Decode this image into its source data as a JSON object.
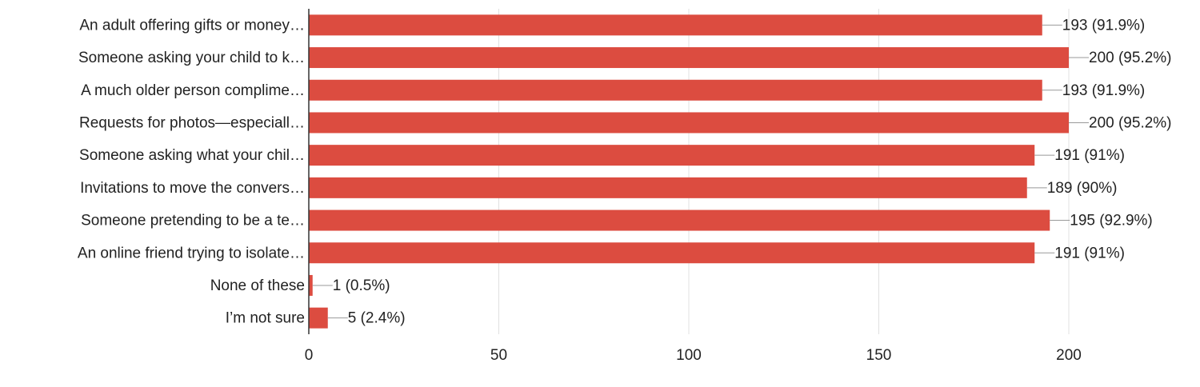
{
  "chart_data": {
    "type": "bar",
    "orientation": "horizontal",
    "categories": [
      "An adult offering gifts or money…",
      "Someone asking your child to k…",
      "A much older person complime…",
      "Requests for photos—especiall…",
      "Someone asking what your chil…",
      "Invitations to move the convers…",
      "Someone pretending to be a te…",
      "An online friend trying to isolate…",
      "None of these",
      "I’m not sure"
    ],
    "values": [
      193,
      200,
      193,
      200,
      191,
      189,
      195,
      191,
      1,
      5
    ],
    "value_labels": [
      "193 (91.9%)",
      "200 (95.2%)",
      "193 (91.9%)",
      "200 (95.2%)",
      "191 (91%)",
      "189 (90%)",
      "195 (92.9%)",
      "191 (91%)",
      "1 (0.5%)",
      "5 (2.4%)"
    ],
    "color": "#dc4c40",
    "xlim": [
      0,
      200
    ],
    "xticks": [
      0,
      50,
      100,
      150,
      200
    ],
    "grid": true
  }
}
